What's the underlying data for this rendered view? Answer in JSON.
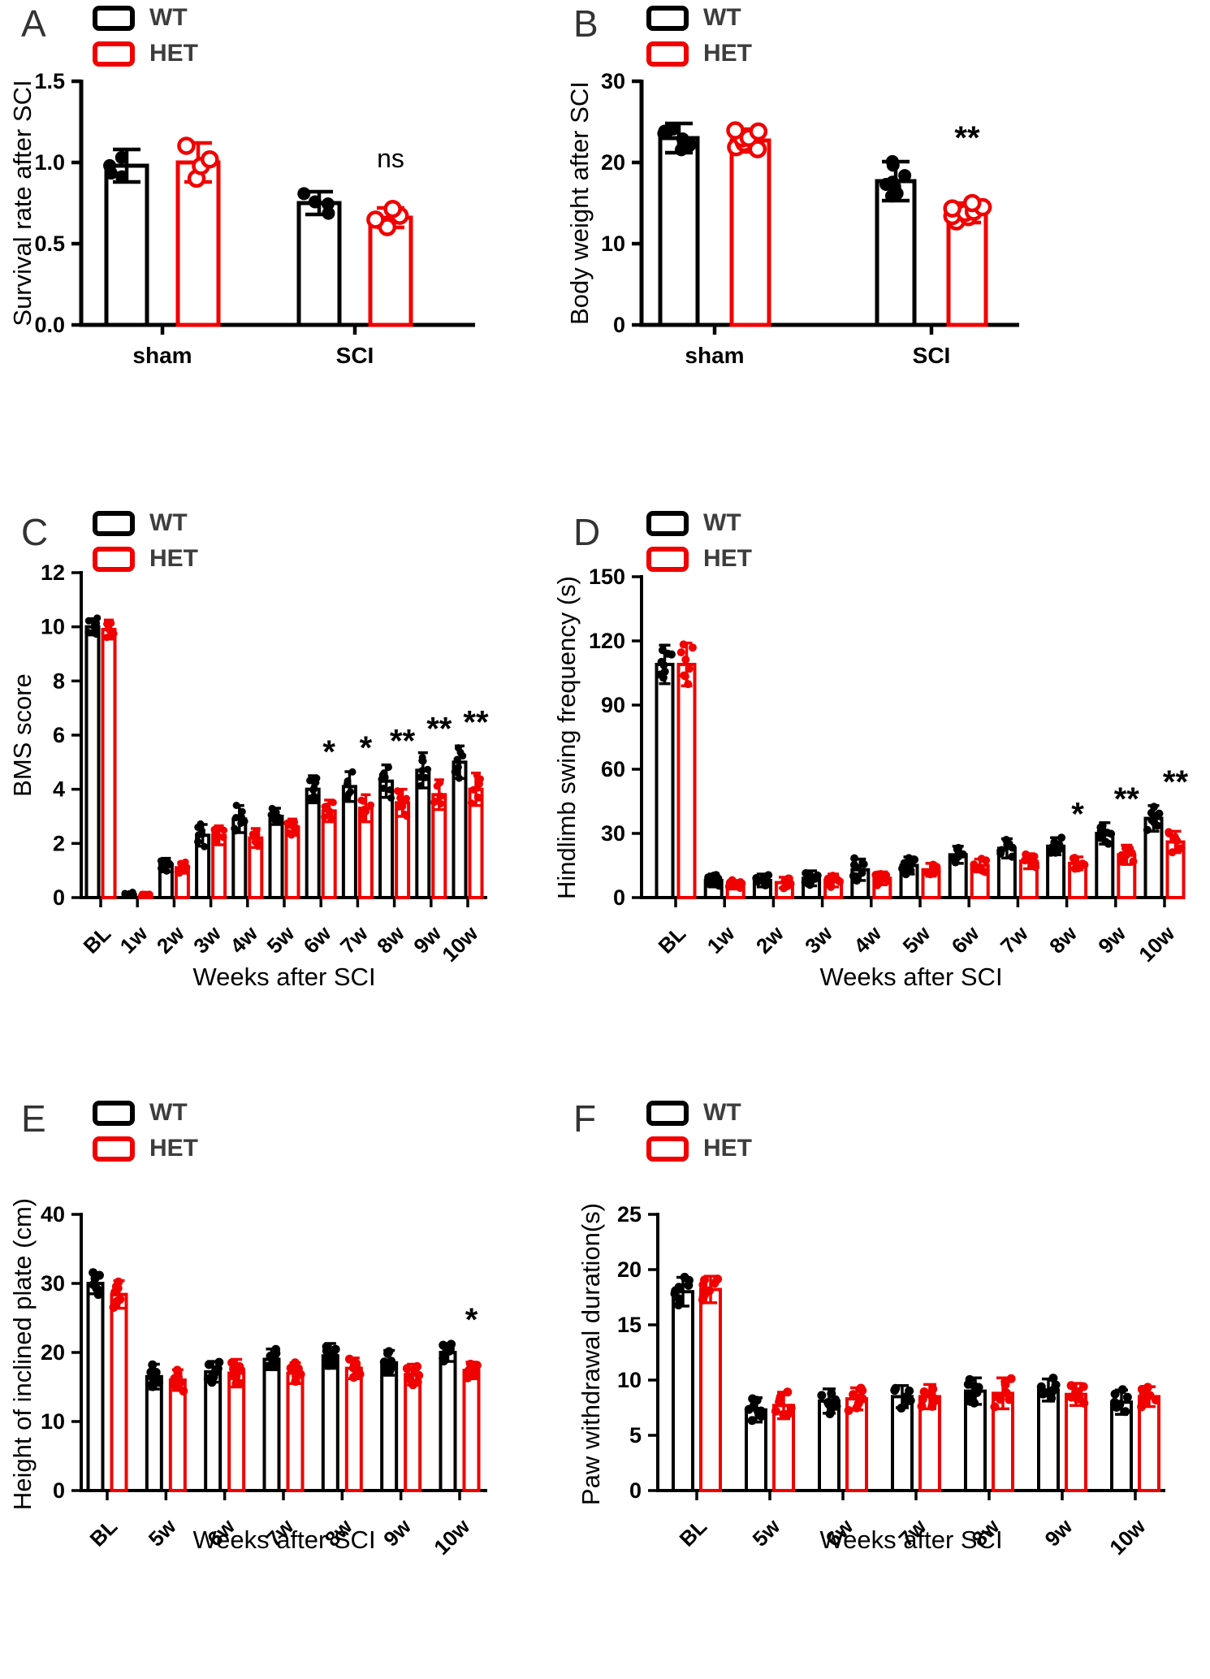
{
  "chart_data": [
    {
      "panel": "A",
      "type": "bar",
      "ylabel": "Survival rate after SCI",
      "xlabel": "",
      "legend": [
        "WT",
        "HET"
      ],
      "colors": [
        "#000000",
        "#f10000"
      ],
      "categories": [
        "sham",
        "SCI"
      ],
      "ylim": [
        0,
        1.5
      ],
      "yticks": [
        0,
        0.5,
        1.0,
        1.5
      ],
      "ytick_labels": [
        "0.0",
        "0.5",
        "1.0",
        "1.5"
      ],
      "grid": false,
      "legend_position": "top-left",
      "series": [
        {
          "name": "WT",
          "color": "#000000",
          "points": "filled",
          "n": 4,
          "means": [
            0.98,
            0.75
          ],
          "sd": [
            0.1,
            0.07
          ]
        },
        {
          "name": "HET",
          "color": "#f10000",
          "points": "open",
          "n": 4,
          "means": [
            1.0,
            0.66
          ],
          "sd": [
            0.12,
            0.06
          ]
        }
      ],
      "significance": [
        {
          "category": "SCI",
          "label": "ns"
        }
      ]
    },
    {
      "panel": "B",
      "type": "bar",
      "ylabel": "Body weight after SCI",
      "xlabel": "",
      "legend": [
        "WT",
        "HET"
      ],
      "colors": [
        "#000000",
        "#f10000"
      ],
      "categories": [
        "sham",
        "SCI"
      ],
      "ylim": [
        0,
        30
      ],
      "yticks": [
        0,
        10,
        20,
        30
      ],
      "ytick_labels": [
        "0",
        "10",
        "20",
        "30"
      ],
      "grid": false,
      "legend_position": "top-left",
      "series": [
        {
          "name": "WT",
          "color": "#000000",
          "points": "filled",
          "n": 8,
          "means": [
            23.0,
            17.7
          ],
          "sd": [
            1.8,
            2.4
          ]
        },
        {
          "name": "HET",
          "color": "#f10000",
          "points": "open",
          "n": 8,
          "means": [
            22.7,
            13.8
          ],
          "sd": [
            1.4,
            1.2
          ]
        }
      ],
      "significance": [
        {
          "category": "SCI",
          "label": "**"
        }
      ]
    },
    {
      "panel": "C",
      "type": "bar",
      "ylabel": "BMS score",
      "xlabel": "Weeks after SCI",
      "legend": [
        "WT",
        "HET"
      ],
      "colors": [
        "#000000",
        "#f10000"
      ],
      "categories": [
        "BL",
        "1w",
        "2w",
        "3w",
        "4w",
        "5w",
        "6w",
        "7w",
        "8w",
        "9w",
        "10w"
      ],
      "ylim": [
        0,
        12
      ],
      "yticks": [
        0,
        2,
        4,
        6,
        8,
        10,
        12
      ],
      "ytick_labels": [
        "0",
        "2",
        "4",
        "6",
        "8",
        "10",
        "12"
      ],
      "grid": false,
      "legend_position": "top-left",
      "series": [
        {
          "name": "WT",
          "color": "#000000",
          "points": "filled",
          "n": 8,
          "means": [
            10.0,
            0.1,
            1.2,
            2.3,
            2.9,
            3.0,
            4.0,
            4.1,
            4.3,
            4.7,
            5.0
          ],
          "sd": [
            0.3,
            0.1,
            0.25,
            0.4,
            0.5,
            0.3,
            0.5,
            0.55,
            0.6,
            0.65,
            0.6
          ]
        },
        {
          "name": "HET",
          "color": "#f10000",
          "points": "filled",
          "n": 8,
          "means": [
            9.9,
            0.05,
            1.1,
            2.3,
            2.2,
            2.6,
            3.2,
            3.3,
            3.5,
            3.8,
            4.0
          ],
          "sd": [
            0.35,
            0.08,
            0.2,
            0.35,
            0.35,
            0.3,
            0.4,
            0.5,
            0.5,
            0.55,
            0.6
          ]
        }
      ],
      "significance": [
        {
          "category": "6w",
          "label": "*"
        },
        {
          "category": "7w",
          "label": "*"
        },
        {
          "category": "8w",
          "label": "**"
        },
        {
          "category": "9w",
          "label": "**"
        },
        {
          "category": "10w",
          "label": "**"
        }
      ]
    },
    {
      "panel": "D",
      "type": "bar",
      "ylabel": "Hindlimb swing frequency (s)",
      "xlabel": "Weeks after SCI",
      "legend": [
        "WT",
        "HET"
      ],
      "colors": [
        "#000000",
        "#f10000"
      ],
      "categories": [
        "BL",
        "1w",
        "2w",
        "3w",
        "4w",
        "5w",
        "6w",
        "7w",
        "8w",
        "9w",
        "10w"
      ],
      "ylim": [
        0,
        150
      ],
      "yticks": [
        0,
        30,
        60,
        90,
        120,
        150
      ],
      "ytick_labels": [
        "0",
        "30",
        "60",
        "90",
        "120",
        "150"
      ],
      "grid": false,
      "legend_position": "top-left",
      "series": [
        {
          "name": "WT",
          "color": "#000000",
          "points": "filled",
          "n": 8,
          "means": [
            109,
            8,
            8,
            9,
            13,
            15,
            20,
            23,
            24,
            30,
            37
          ],
          "sd": [
            9,
            3,
            3,
            3.5,
            5,
            4,
            4,
            4.5,
            4,
            5,
            6
          ]
        },
        {
          "name": "HET",
          "color": "#f10000",
          "points": "filled",
          "n": 8,
          "means": [
            109,
            6,
            7,
            8,
            9,
            13,
            15,
            17,
            16,
            20,
            26
          ],
          "sd": [
            10,
            2,
            2.5,
            3,
            3,
            3,
            3,
            3.5,
            3,
            4.5,
            5
          ]
        }
      ],
      "significance": [
        {
          "category": "8w",
          "label": "*"
        },
        {
          "category": "9w",
          "label": "**"
        },
        {
          "category": "10w",
          "label": "**"
        }
      ]
    },
    {
      "panel": "E",
      "type": "bar",
      "ylabel": "Height of inclined plate (cm)",
      "xlabel": "Weeks after SCI",
      "legend": [
        "WT",
        "HET"
      ],
      "colors": [
        "#000000",
        "#f10000"
      ],
      "categories": [
        "BL",
        "5w",
        "6w",
        "7w",
        "8w",
        "9w",
        "10w"
      ],
      "ylim": [
        0,
        40
      ],
      "yticks": [
        0,
        10,
        20,
        30,
        40
      ],
      "ytick_labels": [
        "0",
        "10",
        "20",
        "30",
        "40"
      ],
      "grid": false,
      "legend_position": "top-left",
      "series": [
        {
          "name": "WT",
          "color": "#000000",
          "points": "filled",
          "n": 8,
          "means": [
            30.0,
            16.5,
            17.2,
            19.0,
            19.5,
            18.5,
            20.0
          ],
          "sd": [
            1.5,
            1.8,
            1.5,
            1.5,
            1.8,
            1.8,
            1.3
          ]
        },
        {
          "name": "HET",
          "color": "#f10000",
          "points": "filled",
          "n": 8,
          "means": [
            28.4,
            16.0,
            17.0,
            17.0,
            17.7,
            16.8,
            17.4
          ],
          "sd": [
            2.0,
            1.5,
            2.0,
            1.5,
            1.5,
            1.5,
            1.2
          ]
        }
      ],
      "significance": [
        {
          "category": "10w",
          "label": "*"
        }
      ]
    },
    {
      "panel": "F",
      "type": "bar",
      "ylabel": "Paw withdrawal duration(s)",
      "xlabel": "Weeks after SCI",
      "legend": [
        "WT",
        "HET"
      ],
      "colors": [
        "#000000",
        "#f10000"
      ],
      "categories": [
        "BL",
        "5w",
        "6w",
        "7w",
        "8w",
        "9w",
        "10w"
      ],
      "ylim": [
        0,
        25
      ],
      "yticks": [
        0,
        5,
        10,
        15,
        20,
        25
      ],
      "ytick_labels": [
        "0",
        "5",
        "10",
        "15",
        "20",
        "25"
      ],
      "grid": false,
      "legend_position": "top-left",
      "series": [
        {
          "name": "WT",
          "color": "#000000",
          "points": "filled",
          "n": 8,
          "means": [
            18.0,
            7.3,
            8.1,
            8.5,
            9.0,
            9.1,
            8.0
          ],
          "sd": [
            1.3,
            1.1,
            1.1,
            1.0,
            1.2,
            1.0,
            1.1
          ]
        },
        {
          "name": "HET",
          "color": "#f10000",
          "points": "filled",
          "n": 8,
          "means": [
            18.2,
            7.7,
            8.3,
            8.5,
            8.8,
            8.7,
            8.5
          ],
          "sd": [
            1.2,
            1.2,
            1.0,
            1.1,
            1.4,
            1.0,
            0.9
          ]
        }
      ],
      "significance": []
    }
  ]
}
